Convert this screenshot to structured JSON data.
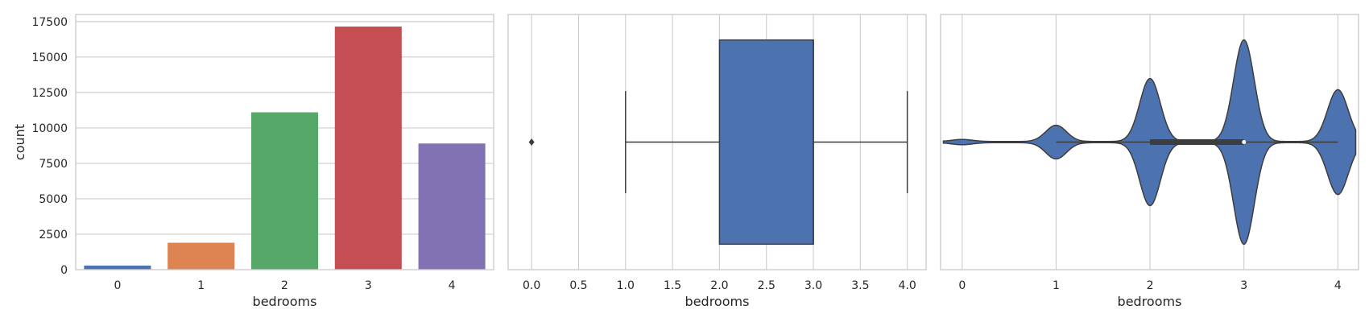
{
  "chart_data": [
    {
      "type": "bar",
      "xlabel": "bedrooms",
      "ylabel": "count",
      "categories": [
        "0",
        "1",
        "2",
        "3",
        "4"
      ],
      "values": [
        290,
        1900,
        11100,
        17150,
        8900
      ],
      "colors": [
        "#4c72b0",
        "#dd8452",
        "#55a868",
        "#c44e52",
        "#8172b3"
      ],
      "ylim": [
        0,
        18000
      ],
      "yticks": [
        0,
        2500,
        5000,
        7500,
        10000,
        12500,
        15000,
        17500
      ],
      "yticklabels": [
        "0",
        "2500",
        "5000",
        "7500",
        "10000",
        "12500",
        "15000",
        "17500"
      ],
      "grid": "horizontal"
    },
    {
      "type": "box",
      "xlabel": "bedrooms",
      "xlim": [
        -0.25,
        4.2
      ],
      "xticks": [
        0,
        0.5,
        1,
        1.5,
        2,
        2.5,
        3,
        3.5,
        4
      ],
      "xticklabels": [
        "0.0",
        "0.5",
        "1.0",
        "1.5",
        "2.0",
        "2.5",
        "3.0",
        "3.5",
        "4.0"
      ],
      "box": {
        "whisker_low": 1,
        "q1": 2,
        "median": 3,
        "q3": 3,
        "whisker_high": 4
      },
      "outliers": [
        0
      ],
      "color": "#4c72b0",
      "grid": "vertical"
    },
    {
      "type": "violin",
      "xlabel": "bedrooms",
      "xlim": [
        -0.23,
        4.22
      ],
      "xticks": [
        0,
        1,
        2,
        3,
        4
      ],
      "xticklabels": [
        "0",
        "1",
        "2",
        "3",
        "4"
      ],
      "density_peaks": [
        {
          "x": 0,
          "height": 0.02
        },
        {
          "x": 1,
          "height": 0.16
        },
        {
          "x": 2,
          "height": 0.62
        },
        {
          "x": 3,
          "height": 1.0
        },
        {
          "x": 4,
          "height": 0.51
        }
      ],
      "quartiles": {
        "min": 1,
        "q1": 2,
        "median": 3,
        "q3": 3,
        "max": 4
      },
      "color": "#4c72b0",
      "grid": "vertical"
    }
  ]
}
